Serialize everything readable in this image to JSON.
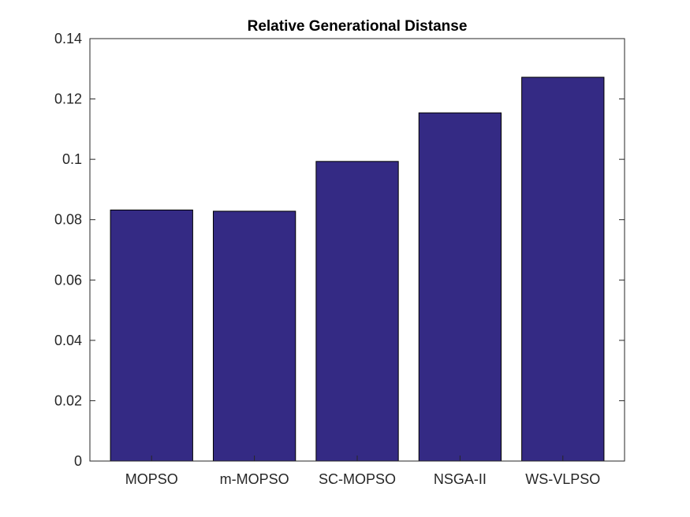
{
  "chart_data": {
    "type": "bar",
    "title": "Relative Generational Distanse",
    "xlabel": "",
    "ylabel": "",
    "categories": [
      "MOPSO",
      "m-MOPSO",
      "SC-MOPSO",
      "NSGA-II",
      "WS-VLPSO"
    ],
    "values": [
      0.0832,
      0.0828,
      0.0993,
      0.1154,
      0.1272
    ],
    "ylim": [
      0,
      0.14
    ],
    "yticks": [
      0,
      0.02,
      0.04,
      0.06,
      0.08,
      0.1,
      0.12,
      0.14
    ],
    "ytick_labels": [
      "0",
      "0.02",
      "0.04",
      "0.06",
      "0.08",
      "0.1",
      "0.12",
      "0.14"
    ],
    "grid": false,
    "legend": "none",
    "bar_color": "#342a84",
    "axis_color": "#262626"
  }
}
